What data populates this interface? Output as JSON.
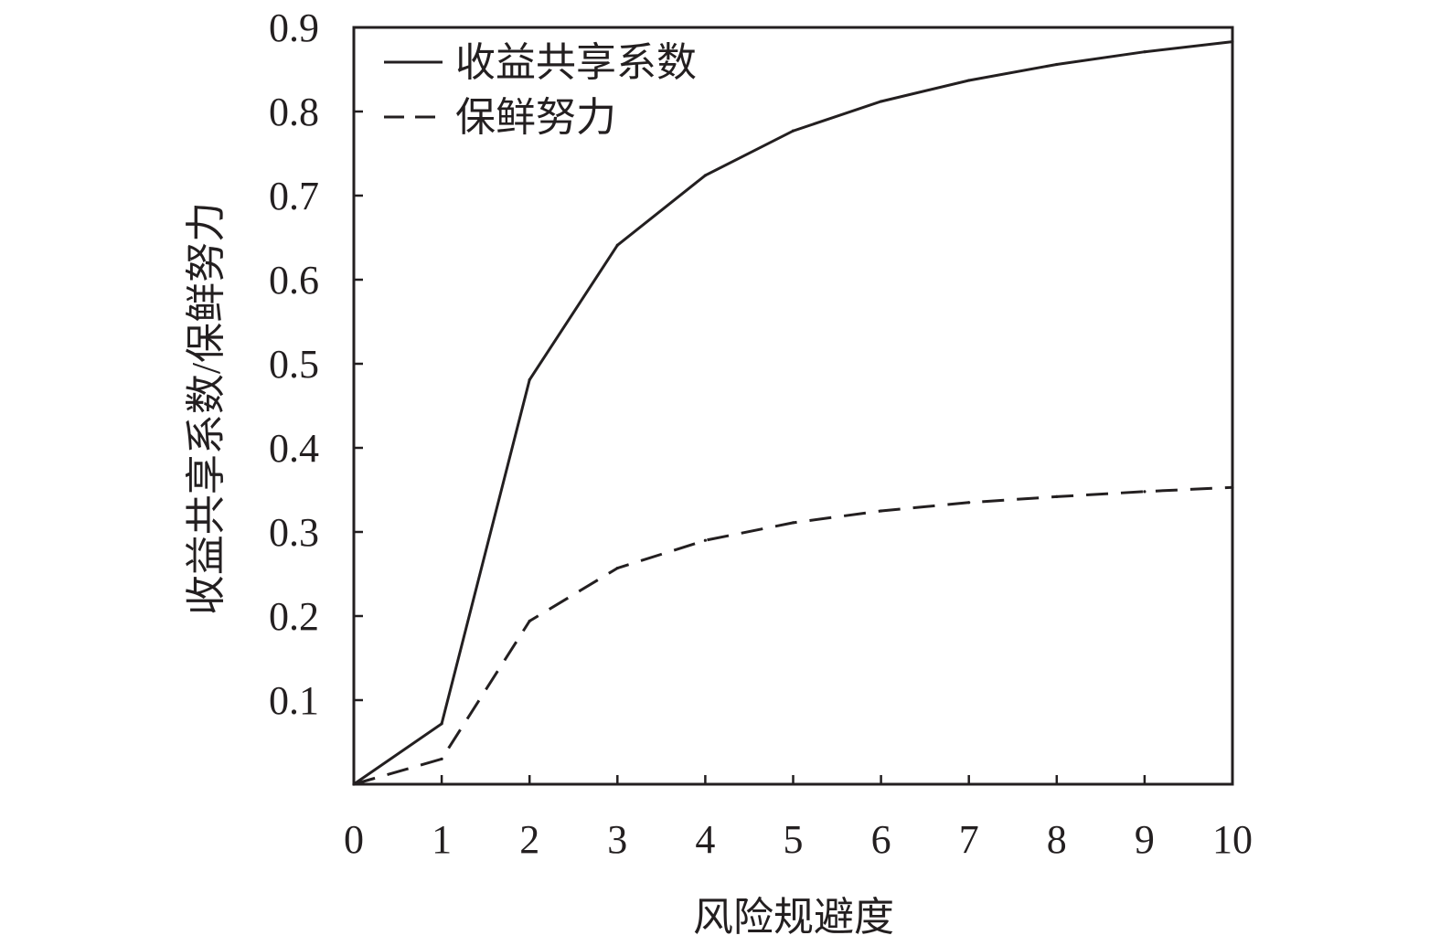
{
  "chart_data": {
    "type": "line",
    "title": "",
    "xlabel": "风险规避度",
    "ylabel": "收益共享系数/保鲜努力",
    "x": [
      0,
      1,
      2,
      3,
      4,
      5,
      6,
      7,
      8,
      9,
      10
    ],
    "xlim": [
      0,
      10
    ],
    "ylim": [
      0,
      0.9
    ],
    "x_ticks": [
      "0",
      "1",
      "2",
      "3",
      "4",
      "5",
      "6",
      "7",
      "8",
      "9",
      "10"
    ],
    "y_ticks": [
      "0.1",
      "0.2",
      "0.3",
      "0.4",
      "0.5",
      "0.6",
      "0.7",
      "0.8",
      "0.9"
    ],
    "grid": false,
    "legend_position": "top-left",
    "series": [
      {
        "name": "收益共享系数",
        "style": "solid",
        "color": "#231f20",
        "values": [
          0,
          0.072,
          0.481,
          0.641,
          0.724,
          0.777,
          0.812,
          0.837,
          0.856,
          0.871,
          0.883
        ]
      },
      {
        "name": "保鲜努力",
        "style": "dashed",
        "color": "#231f20",
        "values": [
          0,
          0.03,
          0.194,
          0.257,
          0.29,
          0.311,
          0.325,
          0.335,
          0.342,
          0.348,
          0.353
        ]
      }
    ]
  }
}
